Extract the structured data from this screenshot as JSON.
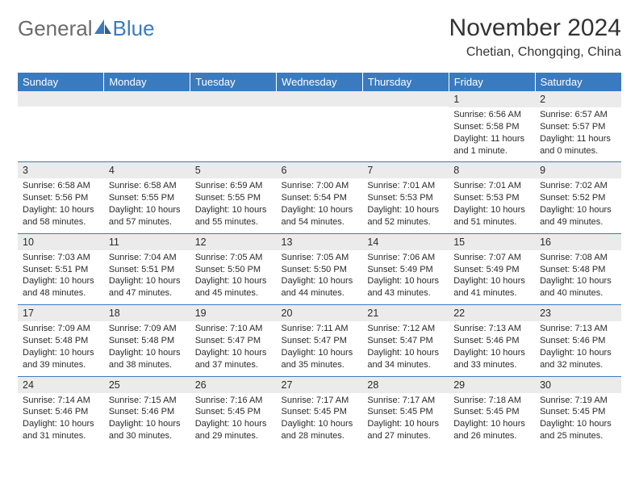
{
  "logo": {
    "text1": "General",
    "text2": "Blue",
    "color_gray": "#6b6b6b",
    "color_blue": "#3a7bbf"
  },
  "title": "November 2024",
  "subtitle": "Chetian, Chongqing, China",
  "colors": {
    "header_bg": "#3a7bbf",
    "header_text": "#ffffff",
    "daynum_bg": "#ebebeb",
    "row_divider": "#3a7bbf",
    "body_text": "#2a2a2a",
    "page_bg": "#ffffff"
  },
  "day_headers": [
    "Sunday",
    "Monday",
    "Tuesday",
    "Wednesday",
    "Thursday",
    "Friday",
    "Saturday"
  ],
  "weeks": [
    [
      {
        "empty": true
      },
      {
        "empty": true
      },
      {
        "empty": true
      },
      {
        "empty": true
      },
      {
        "empty": true
      },
      {
        "num": "1",
        "sunrise": "Sunrise: 6:56 AM",
        "sunset": "Sunset: 5:58 PM",
        "daylight": "Daylight: 11 hours and 1 minute."
      },
      {
        "num": "2",
        "sunrise": "Sunrise: 6:57 AM",
        "sunset": "Sunset: 5:57 PM",
        "daylight": "Daylight: 11 hours and 0 minutes."
      }
    ],
    [
      {
        "num": "3",
        "sunrise": "Sunrise: 6:58 AM",
        "sunset": "Sunset: 5:56 PM",
        "daylight": "Daylight: 10 hours and 58 minutes."
      },
      {
        "num": "4",
        "sunrise": "Sunrise: 6:58 AM",
        "sunset": "Sunset: 5:55 PM",
        "daylight": "Daylight: 10 hours and 57 minutes."
      },
      {
        "num": "5",
        "sunrise": "Sunrise: 6:59 AM",
        "sunset": "Sunset: 5:55 PM",
        "daylight": "Daylight: 10 hours and 55 minutes."
      },
      {
        "num": "6",
        "sunrise": "Sunrise: 7:00 AM",
        "sunset": "Sunset: 5:54 PM",
        "daylight": "Daylight: 10 hours and 54 minutes."
      },
      {
        "num": "7",
        "sunrise": "Sunrise: 7:01 AM",
        "sunset": "Sunset: 5:53 PM",
        "daylight": "Daylight: 10 hours and 52 minutes."
      },
      {
        "num": "8",
        "sunrise": "Sunrise: 7:01 AM",
        "sunset": "Sunset: 5:53 PM",
        "daylight": "Daylight: 10 hours and 51 minutes."
      },
      {
        "num": "9",
        "sunrise": "Sunrise: 7:02 AM",
        "sunset": "Sunset: 5:52 PM",
        "daylight": "Daylight: 10 hours and 49 minutes."
      }
    ],
    [
      {
        "num": "10",
        "sunrise": "Sunrise: 7:03 AM",
        "sunset": "Sunset: 5:51 PM",
        "daylight": "Daylight: 10 hours and 48 minutes."
      },
      {
        "num": "11",
        "sunrise": "Sunrise: 7:04 AM",
        "sunset": "Sunset: 5:51 PM",
        "daylight": "Daylight: 10 hours and 47 minutes."
      },
      {
        "num": "12",
        "sunrise": "Sunrise: 7:05 AM",
        "sunset": "Sunset: 5:50 PM",
        "daylight": "Daylight: 10 hours and 45 minutes."
      },
      {
        "num": "13",
        "sunrise": "Sunrise: 7:05 AM",
        "sunset": "Sunset: 5:50 PM",
        "daylight": "Daylight: 10 hours and 44 minutes."
      },
      {
        "num": "14",
        "sunrise": "Sunrise: 7:06 AM",
        "sunset": "Sunset: 5:49 PM",
        "daylight": "Daylight: 10 hours and 43 minutes."
      },
      {
        "num": "15",
        "sunrise": "Sunrise: 7:07 AM",
        "sunset": "Sunset: 5:49 PM",
        "daylight": "Daylight: 10 hours and 41 minutes."
      },
      {
        "num": "16",
        "sunrise": "Sunrise: 7:08 AM",
        "sunset": "Sunset: 5:48 PM",
        "daylight": "Daylight: 10 hours and 40 minutes."
      }
    ],
    [
      {
        "num": "17",
        "sunrise": "Sunrise: 7:09 AM",
        "sunset": "Sunset: 5:48 PM",
        "daylight": "Daylight: 10 hours and 39 minutes."
      },
      {
        "num": "18",
        "sunrise": "Sunrise: 7:09 AM",
        "sunset": "Sunset: 5:48 PM",
        "daylight": "Daylight: 10 hours and 38 minutes."
      },
      {
        "num": "19",
        "sunrise": "Sunrise: 7:10 AM",
        "sunset": "Sunset: 5:47 PM",
        "daylight": "Daylight: 10 hours and 37 minutes."
      },
      {
        "num": "20",
        "sunrise": "Sunrise: 7:11 AM",
        "sunset": "Sunset: 5:47 PM",
        "daylight": "Daylight: 10 hours and 35 minutes."
      },
      {
        "num": "21",
        "sunrise": "Sunrise: 7:12 AM",
        "sunset": "Sunset: 5:47 PM",
        "daylight": "Daylight: 10 hours and 34 minutes."
      },
      {
        "num": "22",
        "sunrise": "Sunrise: 7:13 AM",
        "sunset": "Sunset: 5:46 PM",
        "daylight": "Daylight: 10 hours and 33 minutes."
      },
      {
        "num": "23",
        "sunrise": "Sunrise: 7:13 AM",
        "sunset": "Sunset: 5:46 PM",
        "daylight": "Daylight: 10 hours and 32 minutes."
      }
    ],
    [
      {
        "num": "24",
        "sunrise": "Sunrise: 7:14 AM",
        "sunset": "Sunset: 5:46 PM",
        "daylight": "Daylight: 10 hours and 31 minutes."
      },
      {
        "num": "25",
        "sunrise": "Sunrise: 7:15 AM",
        "sunset": "Sunset: 5:46 PM",
        "daylight": "Daylight: 10 hours and 30 minutes."
      },
      {
        "num": "26",
        "sunrise": "Sunrise: 7:16 AM",
        "sunset": "Sunset: 5:45 PM",
        "daylight": "Daylight: 10 hours and 29 minutes."
      },
      {
        "num": "27",
        "sunrise": "Sunrise: 7:17 AM",
        "sunset": "Sunset: 5:45 PM",
        "daylight": "Daylight: 10 hours and 28 minutes."
      },
      {
        "num": "28",
        "sunrise": "Sunrise: 7:17 AM",
        "sunset": "Sunset: 5:45 PM",
        "daylight": "Daylight: 10 hours and 27 minutes."
      },
      {
        "num": "29",
        "sunrise": "Sunrise: 7:18 AM",
        "sunset": "Sunset: 5:45 PM",
        "daylight": "Daylight: 10 hours and 26 minutes."
      },
      {
        "num": "30",
        "sunrise": "Sunrise: 7:19 AM",
        "sunset": "Sunset: 5:45 PM",
        "daylight": "Daylight: 10 hours and 25 minutes."
      }
    ]
  ]
}
